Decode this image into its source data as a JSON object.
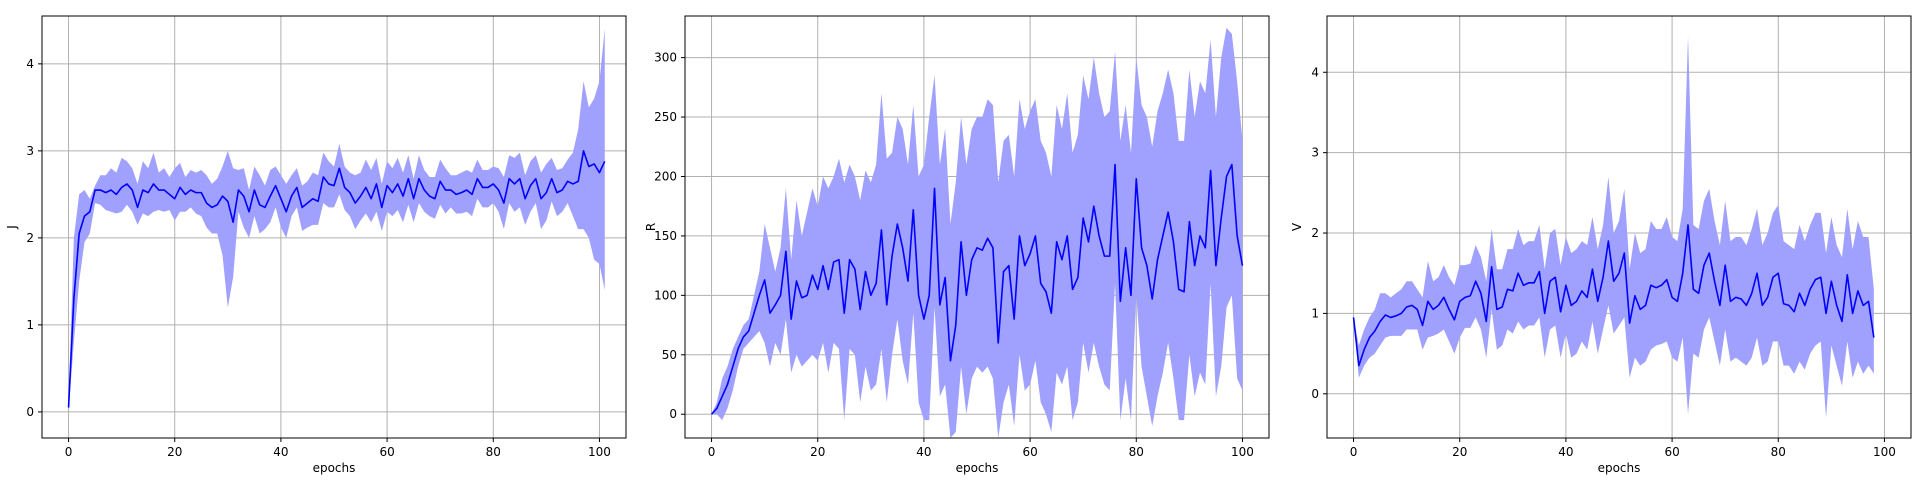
{
  "colors": {
    "line": "#0000ff",
    "band": "#a0a0ff",
    "grid": "#b0b0b0",
    "axis": "#000000"
  },
  "chart_data": [
    {
      "type": "line",
      "xlabel": "epochs",
      "ylabel": "J",
      "xlim": [
        -5,
        105
      ],
      "ylim": [
        -0.3,
        4.55
      ],
      "xticks": [
        0,
        20,
        40,
        60,
        80,
        100
      ],
      "yticks": [
        0,
        1,
        2,
        3,
        4
      ],
      "grid": true,
      "band": "shaded spread around mean",
      "x_start": 0,
      "x_step": 1,
      "mean": [
        0.05,
        1.3,
        2.05,
        2.25,
        2.3,
        2.55,
        2.55,
        2.52,
        2.55,
        2.5,
        2.58,
        2.62,
        2.55,
        2.35,
        2.55,
        2.52,
        2.62,
        2.55,
        2.55,
        2.5,
        2.45,
        2.58,
        2.5,
        2.55,
        2.52,
        2.52,
        2.4,
        2.35,
        2.38,
        2.48,
        2.42,
        2.18,
        2.55,
        2.48,
        2.3,
        2.55,
        2.38,
        2.35,
        2.48,
        2.6,
        2.45,
        2.3,
        2.48,
        2.58,
        2.35,
        2.4,
        2.45,
        2.42,
        2.7,
        2.62,
        2.6,
        2.8,
        2.58,
        2.52,
        2.4,
        2.48,
        2.58,
        2.45,
        2.62,
        2.35,
        2.6,
        2.52,
        2.62,
        2.48,
        2.68,
        2.45,
        2.68,
        2.55,
        2.48,
        2.45,
        2.65,
        2.55,
        2.55,
        2.5,
        2.52,
        2.55,
        2.5,
        2.68,
        2.58,
        2.58,
        2.62,
        2.55,
        2.4,
        2.68,
        2.62,
        2.68,
        2.45,
        2.6,
        2.68,
        2.45,
        2.52,
        2.68,
        2.52,
        2.55,
        2.65,
        2.62,
        2.65,
        3.0,
        2.82,
        2.85,
        2.75,
        2.88
      ],
      "upper": [
        0.1,
        2.0,
        2.5,
        2.55,
        2.45,
        2.6,
        2.72,
        2.72,
        2.8,
        2.75,
        2.92,
        2.88,
        2.8,
        2.62,
        2.88,
        2.8,
        2.98,
        2.75,
        2.8,
        2.7,
        2.8,
        2.86,
        2.7,
        2.78,
        2.75,
        2.78,
        2.72,
        2.62,
        2.68,
        2.82,
        3.0,
        2.8,
        2.78,
        2.8,
        2.55,
        2.82,
        2.72,
        2.6,
        2.78,
        2.82,
        2.72,
        2.62,
        2.72,
        2.8,
        2.6,
        2.65,
        2.75,
        2.72,
        2.98,
        2.88,
        2.82,
        3.08,
        2.82,
        2.75,
        2.72,
        2.75,
        2.9,
        2.78,
        2.92,
        2.62,
        2.88,
        2.8,
        2.92,
        2.75,
        2.95,
        2.68,
        2.95,
        2.78,
        2.7,
        2.7,
        2.9,
        2.8,
        2.72,
        2.72,
        2.75,
        2.78,
        2.75,
        2.9,
        2.78,
        2.78,
        2.82,
        2.8,
        2.7,
        2.95,
        2.92,
        2.98,
        2.72,
        2.88,
        2.95,
        2.75,
        2.85,
        2.92,
        2.78,
        2.8,
        2.9,
        2.98,
        3.25,
        3.8,
        3.5,
        3.6,
        3.8,
        4.4
      ],
      "lower": [
        0.0,
        0.8,
        1.5,
        1.95,
        2.05,
        2.4,
        2.38,
        2.32,
        2.3,
        2.28,
        2.3,
        2.38,
        2.3,
        2.15,
        2.28,
        2.25,
        2.3,
        2.32,
        2.3,
        2.32,
        2.2,
        2.3,
        2.3,
        2.35,
        2.28,
        2.25,
        2.12,
        2.05,
        2.05,
        1.8,
        1.2,
        1.55,
        2.3,
        2.12,
        2.0,
        2.25,
        2.05,
        2.1,
        2.18,
        2.35,
        2.12,
        2.0,
        2.25,
        2.35,
        2.08,
        2.12,
        2.15,
        2.15,
        2.4,
        2.35,
        2.35,
        2.5,
        2.32,
        2.25,
        2.1,
        2.2,
        2.28,
        2.18,
        2.3,
        2.08,
        2.3,
        2.25,
        2.32,
        2.18,
        2.38,
        2.18,
        2.4,
        2.3,
        2.25,
        2.22,
        2.38,
        2.28,
        2.35,
        2.28,
        2.28,
        2.3,
        2.25,
        2.45,
        2.35,
        2.35,
        2.4,
        2.3,
        2.1,
        2.4,
        2.3,
        2.35,
        2.15,
        2.3,
        2.4,
        2.1,
        2.2,
        2.42,
        2.25,
        2.3,
        2.4,
        2.25,
        2.1,
        2.1,
        2.0,
        1.75,
        1.7,
        1.4
      ]
    },
    {
      "type": "line",
      "xlabel": "epochs",
      "ylabel": "R",
      "xlim": [
        -5,
        105
      ],
      "ylim": [
        -20,
        335
      ],
      "xticks": [
        0,
        20,
        40,
        60,
        80,
        100
      ],
      "yticks": [
        0,
        50,
        100,
        150,
        200,
        250,
        300
      ],
      "grid": true,
      "band": "shaded spread around mean",
      "x_start": 0,
      "x_step": 1,
      "mean": [
        0,
        5,
        15,
        25,
        40,
        55,
        65,
        70,
        85,
        100,
        113,
        85,
        92,
        100,
        137,
        80,
        112,
        98,
        100,
        117,
        105,
        125,
        105,
        128,
        130,
        85,
        130,
        122,
        88,
        120,
        100,
        110,
        155,
        92,
        133,
        160,
        140,
        112,
        172,
        100,
        80,
        100,
        190,
        92,
        115,
        45,
        75,
        145,
        100,
        130,
        140,
        138,
        148,
        140,
        60,
        120,
        125,
        80,
        150,
        125,
        135,
        150,
        110,
        103,
        85,
        145,
        130,
        150,
        105,
        115,
        165,
        145,
        175,
        150,
        133,
        133,
        210,
        95,
        140,
        100,
        198,
        140,
        125,
        97,
        130,
        150,
        170,
        145,
        105,
        103,
        162,
        125,
        150,
        140,
        205,
        125,
        165,
        200,
        210,
        150,
        125
      ],
      "upper": [
        0,
        10,
        30,
        40,
        55,
        65,
        75,
        80,
        100,
        120,
        160,
        140,
        120,
        140,
        190,
        130,
        180,
        150,
        170,
        190,
        175,
        200,
        190,
        200,
        215,
        195,
        210,
        200,
        180,
        205,
        195,
        210,
        270,
        215,
        220,
        250,
        240,
        210,
        260,
        200,
        210,
        250,
        285,
        210,
        240,
        160,
        195,
        250,
        210,
        240,
        250,
        250,
        265,
        260,
        195,
        230,
        235,
        200,
        265,
        240,
        255,
        265,
        230,
        220,
        200,
        260,
        240,
        270,
        220,
        235,
        285,
        265,
        300,
        270,
        250,
        255,
        305,
        230,
        260,
        220,
        300,
        260,
        250,
        225,
        255,
        270,
        290,
        270,
        230,
        230,
        290,
        250,
        280,
        270,
        315,
        250,
        300,
        325,
        320,
        280,
        230
      ],
      "lower": [
        0,
        0,
        -5,
        5,
        20,
        40,
        55,
        60,
        65,
        70,
        60,
        40,
        60,
        50,
        80,
        35,
        50,
        40,
        45,
        50,
        45,
        60,
        35,
        60,
        55,
        -5,
        55,
        50,
        10,
        40,
        20,
        25,
        55,
        10,
        50,
        80,
        45,
        25,
        85,
        10,
        -5,
        -5,
        90,
        15,
        25,
        -20,
        -15,
        40,
        0,
        30,
        40,
        35,
        40,
        30,
        -20,
        10,
        25,
        -10,
        50,
        20,
        25,
        45,
        10,
        0,
        -15,
        35,
        25,
        40,
        -5,
        10,
        60,
        35,
        60,
        40,
        25,
        20,
        110,
        -5,
        30,
        -5,
        100,
        40,
        15,
        -10,
        15,
        35,
        60,
        30,
        -5,
        -5,
        50,
        15,
        35,
        25,
        110,
        15,
        40,
        90,
        100,
        30,
        20
      ]
    },
    {
      "type": "line",
      "xlabel": "epochs",
      "ylabel": "V",
      "xlim": [
        -5,
        105
      ],
      "ylim": [
        -0.55,
        4.7
      ],
      "xticks": [
        0,
        20,
        40,
        60,
        80,
        100
      ],
      "yticks": [
        0,
        1,
        2,
        3,
        4
      ],
      "grid": true,
      "band": "shaded spread around mean",
      "x_start": 0,
      "x_step": 1,
      "mean": [
        0.95,
        0.35,
        0.55,
        0.7,
        0.78,
        0.9,
        0.98,
        0.95,
        0.97,
        1.0,
        1.08,
        1.1,
        1.05,
        0.85,
        1.15,
        1.05,
        1.1,
        1.2,
        1.05,
        0.92,
        1.15,
        1.2,
        1.22,
        1.4,
        1.25,
        0.9,
        1.58,
        1.05,
        1.08,
        1.3,
        1.28,
        1.5,
        1.35,
        1.38,
        1.38,
        1.52,
        1.0,
        1.4,
        1.45,
        1.02,
        1.35,
        1.1,
        1.15,
        1.28,
        1.2,
        1.55,
        1.15,
        1.45,
        1.9,
        1.4,
        1.5,
        1.75,
        0.88,
        1.22,
        1.05,
        1.1,
        1.35,
        1.32,
        1.35,
        1.42,
        1.2,
        1.15,
        1.5,
        2.1,
        1.3,
        1.25,
        1.6,
        1.75,
        1.4,
        1.1,
        1.6,
        1.15,
        1.2,
        1.18,
        1.1,
        1.25,
        1.5,
        1.1,
        1.2,
        1.45,
        1.5,
        1.12,
        1.1,
        1.02,
        1.25,
        1.1,
        1.3,
        1.42,
        1.45,
        1.0,
        1.4,
        1.1,
        0.9,
        1.48,
        1.0,
        1.28,
        1.1,
        1.15,
        0.7
      ],
      "upper": [
        0.95,
        0.6,
        0.8,
        0.95,
        1.05,
        1.25,
        1.25,
        1.2,
        1.25,
        1.3,
        1.4,
        1.4,
        1.3,
        1.2,
        1.65,
        1.4,
        1.45,
        1.6,
        1.45,
        1.35,
        1.6,
        1.6,
        1.62,
        1.85,
        1.7,
        1.4,
        2.05,
        1.55,
        1.55,
        1.8,
        1.8,
        2.05,
        1.85,
        1.9,
        1.9,
        2.1,
        1.55,
        2.0,
        2.05,
        1.6,
        1.95,
        1.75,
        1.8,
        1.9,
        1.85,
        2.2,
        1.8,
        2.1,
        2.7,
        2.0,
        2.15,
        2.55,
        1.55,
        2.0,
        1.75,
        1.8,
        2.15,
        2.05,
        2.05,
        2.2,
        1.95,
        1.9,
        2.3,
        4.45,
        2.1,
        2.05,
        2.4,
        2.55,
        2.15,
        1.85,
        2.4,
        1.9,
        1.95,
        1.95,
        1.85,
        2.05,
        2.3,
        1.85,
        2.0,
        2.25,
        2.35,
        1.9,
        1.85,
        1.8,
        2.1,
        1.9,
        2.1,
        2.25,
        2.25,
        1.75,
        2.2,
        1.85,
        1.7,
        2.3,
        1.8,
        2.15,
        1.95,
        1.95,
        1.3
      ],
      "lower": [
        0.95,
        0.2,
        0.35,
        0.45,
        0.5,
        0.6,
        0.7,
        0.72,
        0.72,
        0.72,
        0.8,
        0.8,
        0.8,
        0.55,
        0.7,
        0.72,
        0.75,
        0.8,
        0.65,
        0.5,
        0.7,
        0.82,
        0.82,
        0.95,
        0.8,
        0.45,
        1.05,
        0.55,
        0.6,
        0.8,
        0.75,
        0.9,
        0.8,
        0.85,
        0.85,
        0.95,
        0.45,
        0.8,
        0.85,
        0.45,
        0.75,
        0.45,
        0.5,
        0.65,
        0.55,
        0.9,
        0.5,
        0.8,
        1.1,
        0.75,
        0.85,
        0.95,
        0.2,
        0.45,
        0.35,
        0.4,
        0.55,
        0.6,
        0.62,
        0.65,
        0.45,
        0.4,
        0.7,
        -0.25,
        0.5,
        0.45,
        0.8,
        0.95,
        0.65,
        0.35,
        0.8,
        0.4,
        0.45,
        0.4,
        0.35,
        0.45,
        0.7,
        0.35,
        0.4,
        0.65,
        0.65,
        0.35,
        0.35,
        0.25,
        0.4,
        0.3,
        0.5,
        0.6,
        0.65,
        -0.3,
        0.6,
        0.35,
        0.1,
        0.65,
        0.2,
        0.4,
        0.25,
        0.35,
        0.25
      ]
    }
  ]
}
